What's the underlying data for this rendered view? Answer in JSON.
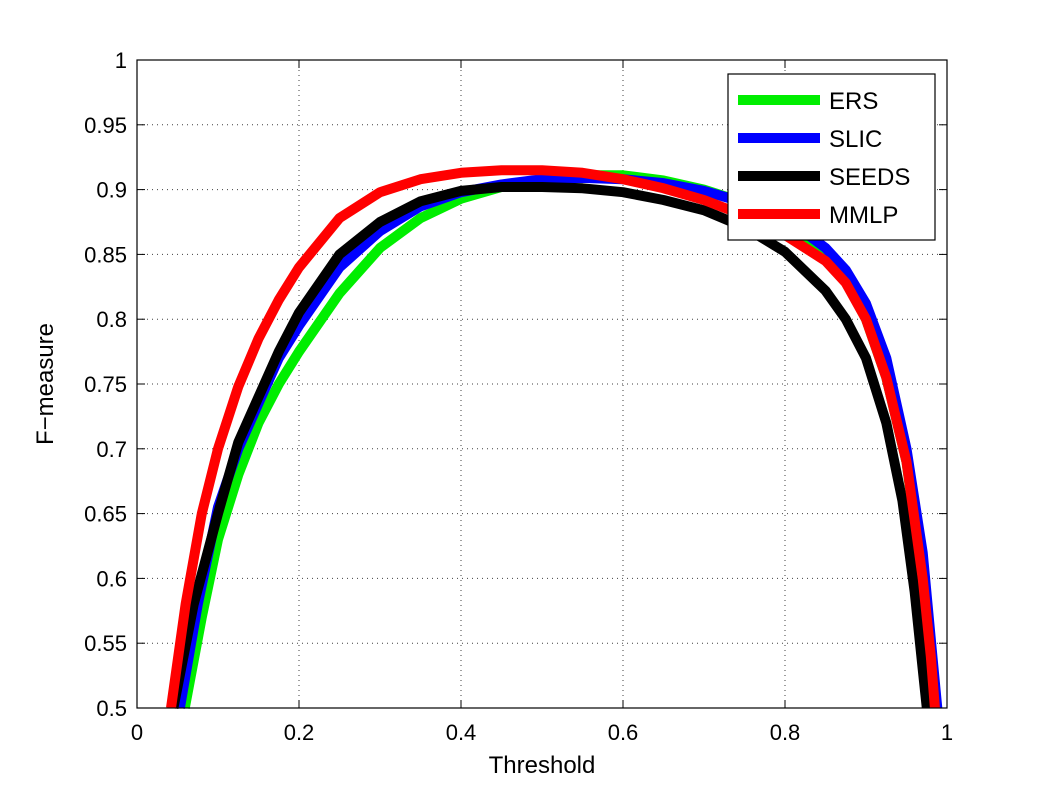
{
  "chart_data": {
    "type": "line",
    "xlabel": "Threshold",
    "ylabel": "F−measure",
    "xlim": [
      0,
      1
    ],
    "ylim": [
      0.5,
      1
    ],
    "xticks": [
      0,
      0.2,
      0.4,
      0.6,
      0.8,
      1
    ],
    "xtick_labels": [
      "0",
      "0.2",
      "0.4",
      "0.6",
      "0.8",
      "1"
    ],
    "yticks": [
      0.5,
      0.55,
      0.6,
      0.65,
      0.7,
      0.75,
      0.8,
      0.85,
      0.9,
      0.95,
      1
    ],
    "ytick_labels": [
      "0.5",
      "0.55",
      "0.6",
      "0.65",
      "0.7",
      "0.75",
      "0.8",
      "0.85",
      "0.9",
      "0.95",
      "1"
    ],
    "grid": true,
    "legend": "top-right",
    "series": [
      {
        "name": "ERS",
        "color": "#00ee00",
        "points": [
          [
            0.059,
            0.5
          ],
          [
            0.08,
            0.57
          ],
          [
            0.1,
            0.63
          ],
          [
            0.125,
            0.68
          ],
          [
            0.15,
            0.72
          ],
          [
            0.175,
            0.75
          ],
          [
            0.2,
            0.775
          ],
          [
            0.25,
            0.82
          ],
          [
            0.3,
            0.855
          ],
          [
            0.35,
            0.878
          ],
          [
            0.4,
            0.893
          ],
          [
            0.45,
            0.902
          ],
          [
            0.5,
            0.908
          ],
          [
            0.55,
            0.911
          ],
          [
            0.6,
            0.911
          ],
          [
            0.65,
            0.907
          ],
          [
            0.7,
            0.9
          ],
          [
            0.75,
            0.89
          ],
          [
            0.8,
            0.875
          ],
          [
            0.85,
            0.848
          ],
          [
            0.875,
            0.83
          ],
          [
            0.9,
            0.8
          ],
          [
            0.925,
            0.755
          ],
          [
            0.95,
            0.69
          ],
          [
            0.965,
            0.62
          ],
          [
            0.975,
            0.54
          ],
          [
            0.98,
            0.5
          ]
        ]
      },
      {
        "name": "SLIC",
        "color": "#0000ff",
        "points": [
          [
            0.053,
            0.5
          ],
          [
            0.075,
            0.58
          ],
          [
            0.1,
            0.655
          ],
          [
            0.125,
            0.7
          ],
          [
            0.15,
            0.735
          ],
          [
            0.175,
            0.77
          ],
          [
            0.2,
            0.795
          ],
          [
            0.25,
            0.84
          ],
          [
            0.3,
            0.868
          ],
          [
            0.35,
            0.887
          ],
          [
            0.4,
            0.898
          ],
          [
            0.45,
            0.904
          ],
          [
            0.5,
            0.908
          ],
          [
            0.55,
            0.909
          ],
          [
            0.6,
            0.908
          ],
          [
            0.65,
            0.905
          ],
          [
            0.7,
            0.899
          ],
          [
            0.75,
            0.89
          ],
          [
            0.8,
            0.878
          ],
          [
            0.85,
            0.855
          ],
          [
            0.875,
            0.838
          ],
          [
            0.9,
            0.812
          ],
          [
            0.925,
            0.77
          ],
          [
            0.95,
            0.7
          ],
          [
            0.97,
            0.62
          ],
          [
            0.982,
            0.54
          ],
          [
            0.988,
            0.5
          ]
        ]
      },
      {
        "name": "SEEDS",
        "color": "#000000",
        "points": [
          [
            0.045,
            0.5
          ],
          [
            0.07,
            0.58
          ],
          [
            0.1,
            0.65
          ],
          [
            0.125,
            0.705
          ],
          [
            0.15,
            0.74
          ],
          [
            0.175,
            0.775
          ],
          [
            0.2,
            0.805
          ],
          [
            0.25,
            0.85
          ],
          [
            0.3,
            0.875
          ],
          [
            0.35,
            0.891
          ],
          [
            0.4,
            0.899
          ],
          [
            0.45,
            0.902
          ],
          [
            0.5,
            0.902
          ],
          [
            0.55,
            0.901
          ],
          [
            0.6,
            0.898
          ],
          [
            0.65,
            0.892
          ],
          [
            0.7,
            0.884
          ],
          [
            0.75,
            0.871
          ],
          [
            0.8,
            0.852
          ],
          [
            0.85,
            0.822
          ],
          [
            0.875,
            0.8
          ],
          [
            0.9,
            0.77
          ],
          [
            0.925,
            0.72
          ],
          [
            0.945,
            0.66
          ],
          [
            0.96,
            0.59
          ],
          [
            0.97,
            0.53
          ],
          [
            0.975,
            0.5
          ]
        ]
      },
      {
        "name": "MMLP",
        "color": "#ff0000",
        "points": [
          [
            0.042,
            0.5
          ],
          [
            0.06,
            0.58
          ],
          [
            0.08,
            0.65
          ],
          [
            0.1,
            0.7
          ],
          [
            0.125,
            0.748
          ],
          [
            0.15,
            0.785
          ],
          [
            0.175,
            0.815
          ],
          [
            0.2,
            0.84
          ],
          [
            0.25,
            0.878
          ],
          [
            0.3,
            0.898
          ],
          [
            0.35,
            0.908
          ],
          [
            0.4,
            0.913
          ],
          [
            0.45,
            0.915
          ],
          [
            0.5,
            0.915
          ],
          [
            0.55,
            0.913
          ],
          [
            0.6,
            0.908
          ],
          [
            0.65,
            0.901
          ],
          [
            0.7,
            0.892
          ],
          [
            0.75,
            0.88
          ],
          [
            0.8,
            0.865
          ],
          [
            0.85,
            0.845
          ],
          [
            0.875,
            0.828
          ],
          [
            0.9,
            0.8
          ],
          [
            0.925,
            0.755
          ],
          [
            0.95,
            0.69
          ],
          [
            0.97,
            0.6
          ],
          [
            0.98,
            0.54
          ],
          [
            0.985,
            0.5
          ]
        ]
      }
    ]
  }
}
